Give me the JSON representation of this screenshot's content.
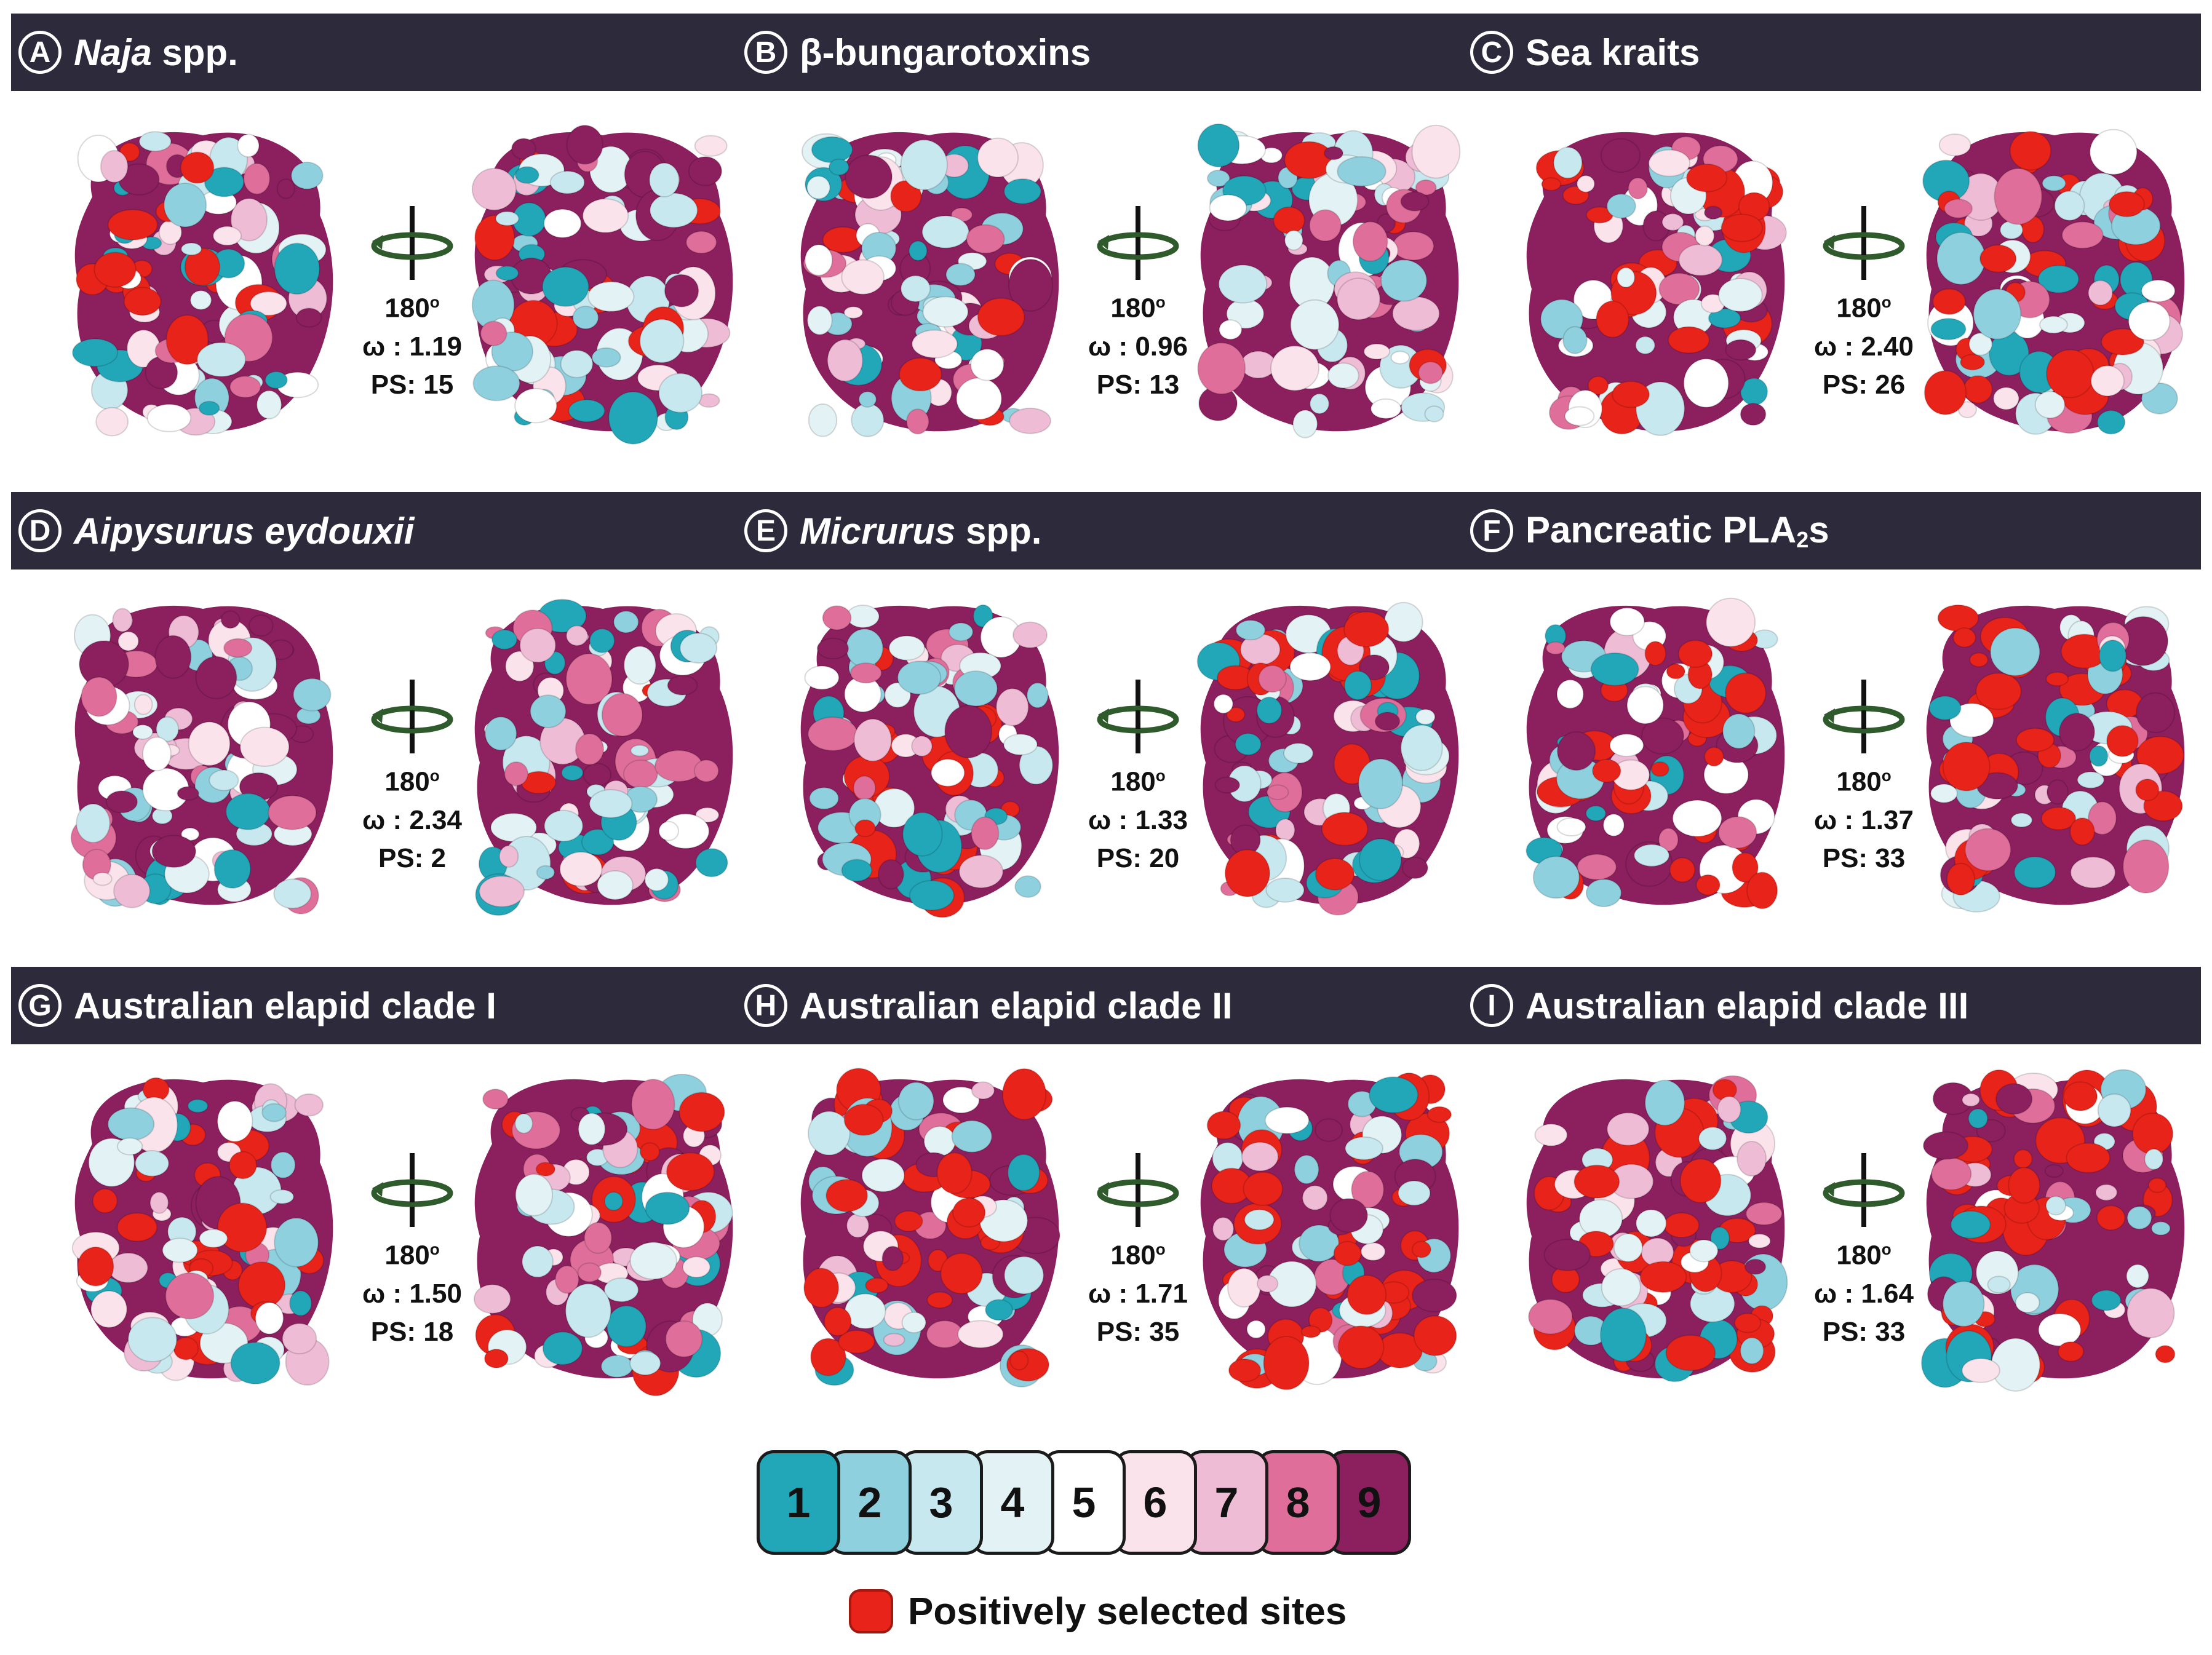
{
  "colors": {
    "bar": "#2d2b3b",
    "positive": "#e8231a",
    "scale": [
      "#22a7b9",
      "#8fd0de",
      "#c7e8ee",
      "#e3f2f4",
      "#ffffff",
      "#fbe3ec",
      "#efbcd6",
      "#df6f9a",
      "#8c1f5e"
    ]
  },
  "rotation_label": "180",
  "panels": [
    {
      "letter": "A",
      "title_italic": "Naja",
      "title_rest": " spp.",
      "sub": "",
      "title_tail": "",
      "omega": "ω : 1.19",
      "ps": "PS: 15"
    },
    {
      "letter": "B",
      "title_italic": "",
      "title_rest": "β-bungarotoxins",
      "sub": "",
      "title_tail": "",
      "omega": "ω : 0.96",
      "ps": "PS: 13"
    },
    {
      "letter": "C",
      "title_italic": "",
      "title_rest": "Sea kraits",
      "sub": "",
      "title_tail": "",
      "omega": "ω : 2.40",
      "ps": "PS: 26"
    },
    {
      "letter": "D",
      "title_italic": "Aipysurus eydouxii",
      "title_rest": "",
      "sub": "",
      "title_tail": "",
      "omega": "ω : 2.34",
      "ps": "PS: 2"
    },
    {
      "letter": "E",
      "title_italic": "Micrurus",
      "title_rest": " spp.",
      "sub": "",
      "title_tail": "",
      "omega": "ω : 1.33",
      "ps": "PS: 20"
    },
    {
      "letter": "F",
      "title_italic": "",
      "title_rest": "Pancreatic PLA",
      "sub": "2",
      "title_tail": "s",
      "omega": "ω : 1.37",
      "ps": "PS: 33"
    },
    {
      "letter": "G",
      "title_italic": "",
      "title_rest": "Australian elapid clade I",
      "sub": "",
      "title_tail": "",
      "omega": "ω : 1.50",
      "ps": "PS: 18"
    },
    {
      "letter": "H",
      "title_italic": "",
      "title_rest": "Australian elapid clade II",
      "sub": "",
      "title_tail": "",
      "omega": "ω : 1.71",
      "ps": "PS: 35"
    },
    {
      "letter": "I",
      "title_italic": "",
      "title_rest": "Australian elapid clade III",
      "sub": "",
      "title_tail": "",
      "omega": "ω : 1.64",
      "ps": "PS: 33"
    }
  ],
  "legend": {
    "scale_labels": [
      "1",
      "2",
      "3",
      "4",
      "5",
      "6",
      "7",
      "8",
      "9"
    ],
    "positive_label": "Positively selected sites"
  }
}
